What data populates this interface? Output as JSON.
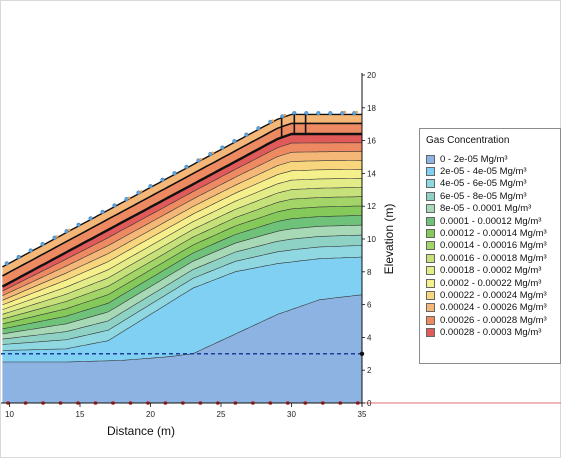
{
  "chart_data": {
    "type": "heatmap",
    "subtype": "filled-contour cross-section",
    "title": "",
    "xlabel": "Distance (m)",
    "ylabel": "Elevation (m)",
    "xlim": [
      9.5,
      35
    ],
    "ylim": [
      0,
      20
    ],
    "x_ticks": [
      10,
      15,
      20,
      25,
      30,
      35
    ],
    "y_ticks": [
      0,
      2,
      4,
      6,
      8,
      10,
      12,
      14,
      16,
      18,
      20
    ],
    "y_axis_side": "right",
    "grid": false,
    "legend": {
      "title": "Gas Concentration",
      "placement": "right",
      "entries": [
        {
          "label": "0 - 2e-05 Mg/m³",
          "color": "#8DB3E2"
        },
        {
          "label": "2e-05 - 4e-05 Mg/m³",
          "color": "#7FD0F2"
        },
        {
          "label": "4e-05 - 6e-05 Mg/m³",
          "color": "#8FD8E2"
        },
        {
          "label": "6e-05 - 8e-05 Mg/m³",
          "color": "#8ED2C6"
        },
        {
          "label": "8e-05 - 0.0001 Mg/m³",
          "color": "#A8D9B7"
        },
        {
          "label": "0.0001 - 0.00012 Mg/m³",
          "color": "#6FC27A"
        },
        {
          "label": "0.00012 - 0.00014 Mg/m³",
          "color": "#84C95A"
        },
        {
          "label": "0.00014 - 0.00016 Mg/m³",
          "color": "#A3D468"
        },
        {
          "label": "0.00016 - 0.00018 Mg/m³",
          "color": "#C6E07A"
        },
        {
          "label": "0.00018 - 0.0002 Mg/m³",
          "color": "#E4EC88"
        },
        {
          "label": "0.0002 - 0.00022 Mg/m³",
          "color": "#F6F08C"
        },
        {
          "label": "0.00022 - 0.00024 Mg/m³",
          "color": "#F7D67E"
        },
        {
          "label": "0.00024 - 0.00026 Mg/m³",
          "color": "#F5B778"
        },
        {
          "label": "0.00026 - 0.00028 Mg/m³",
          "color": "#EE8A62"
        },
        {
          "label": "0.00028 - 0.0003 Mg/m³",
          "color": "#E05A5A"
        }
      ]
    },
    "ground_surface": [
      [
        9.5,
        8.3
      ],
      [
        29.0,
        17.3
      ],
      [
        30.0,
        17.6
      ],
      [
        35.0,
        17.6
      ]
    ],
    "cover_layer_thickness_m": 1.2,
    "water_table_elevation": 3.0,
    "region_0_2e05_boundary": [
      [
        9.5,
        2.5
      ],
      [
        14,
        2.5
      ],
      [
        18,
        2.6
      ],
      [
        21,
        2.8
      ],
      [
        23,
        3.0
      ],
      [
        26,
        4.2
      ],
      [
        29,
        5.4
      ],
      [
        32,
        6.3
      ],
      [
        35,
        6.6
      ]
    ],
    "region_2e05_4e05_boundary": [
      [
        9.5,
        3.2
      ],
      [
        14,
        3.3
      ],
      [
        17,
        3.8
      ],
      [
        20,
        5.4
      ],
      [
        23,
        7.0
      ],
      [
        26,
        8.0
      ],
      [
        29,
        8.5
      ],
      [
        32,
        8.8
      ],
      [
        35,
        8.9
      ]
    ]
  }
}
